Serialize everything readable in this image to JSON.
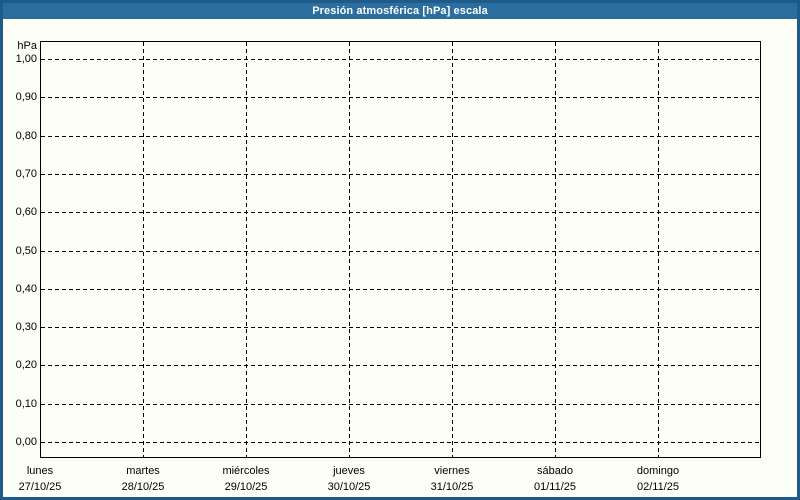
{
  "window": {
    "title": "Presión atmosférica [hPa] escala"
  },
  "chart_data": {
    "type": "line",
    "title": "Presión atmosférica [hPa] escala",
    "ylabel": "hPa",
    "xlabel": "",
    "ylim": [
      0,
      1
    ],
    "y_ticks": [
      {
        "label": "1,00",
        "value": 1.0
      },
      {
        "label": "0,90",
        "value": 0.9
      },
      {
        "label": "0,80",
        "value": 0.8
      },
      {
        "label": "0,70",
        "value": 0.7
      },
      {
        "label": "0,60",
        "value": 0.6
      },
      {
        "label": "0,50",
        "value": 0.5
      },
      {
        "label": "0,40",
        "value": 0.4
      },
      {
        "label": "0,30",
        "value": 0.3
      },
      {
        "label": "0,20",
        "value": 0.2
      },
      {
        "label": "0,10",
        "value": 0.1
      },
      {
        "label": "0,00",
        "value": 0.0
      }
    ],
    "categories": [
      {
        "day": "lunes",
        "date": "27/10/25"
      },
      {
        "day": "martes",
        "date": "28/10/25"
      },
      {
        "day": "miércoles",
        "date": "29/10/25"
      },
      {
        "day": "jueves",
        "date": "30/10/25"
      },
      {
        "day": "viernes",
        "date": "31/10/25"
      },
      {
        "day": "sábado",
        "date": "01/11/25"
      },
      {
        "day": "domingo",
        "date": "02/11/25"
      }
    ],
    "series": [],
    "grid": "dashed",
    "legend_position": "none"
  },
  "colors": {
    "titlebar_bg": "#2a6d9e",
    "window_border": "#1e5a8a",
    "chart_bg": "#fdfff6",
    "grid_line": "#000000",
    "axis_text": "#000000",
    "title_text": "#ffffff"
  }
}
